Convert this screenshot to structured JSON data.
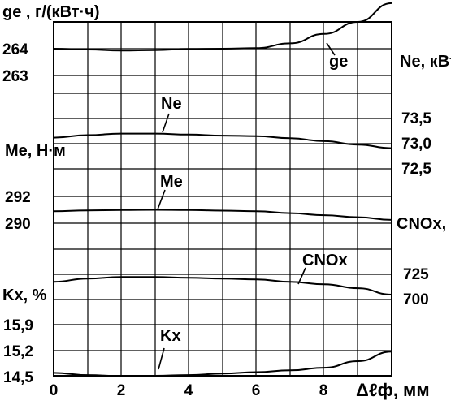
{
  "chart_data": {
    "type": "line",
    "x": [
      0,
      1,
      2,
      3,
      4,
      5,
      6,
      7,
      8,
      9,
      10
    ],
    "xlim": [
      0,
      10
    ],
    "x_ticks": [
      "0",
      "2",
      "4",
      "6",
      "8"
    ],
    "x_axis_label": "Δℓф, мм",
    "grid": true,
    "series": [
      {
        "name": "ge",
        "axis_label": "ge , г/(кВт·ч)",
        "axis_ticks": [
          "264",
          "263"
        ],
        "values": [
          264.0,
          263.97,
          263.93,
          263.95,
          263.99,
          264.0,
          264.02,
          264.2,
          264.55,
          265.0,
          265.7
        ]
      },
      {
        "name": "Ne",
        "axis_label": "Ne, кВт",
        "axis_ticks": [
          "73,5",
          "73,0",
          "72,5"
        ],
        "values": [
          73.12,
          73.17,
          73.2,
          73.2,
          73.18,
          73.16,
          73.15,
          73.11,
          73.05,
          72.98,
          72.91
        ]
      },
      {
        "name": "Me",
        "axis_label": "Me, Н·м",
        "axis_ticks": [
          "292",
          "290"
        ],
        "values": [
          290.9,
          290.95,
          290.98,
          291.0,
          290.98,
          290.94,
          290.9,
          290.75,
          290.6,
          290.45,
          290.25
        ]
      },
      {
        "name": "CNOx",
        "axis_label": "CNOx, ppm",
        "axis_ticks": [
          "725",
          "700"
        ],
        "values": [
          717.6,
          720.8,
          722.4,
          722.4,
          721.6,
          720.8,
          720.0,
          717.6,
          715.2,
          711.2,
          704.8
        ]
      },
      {
        "name": "Kx",
        "axis_label": "Kx, %",
        "axis_ticks": [
          "15,9",
          "15,2",
          "14,5"
        ],
        "values": [
          14.58,
          14.52,
          14.49,
          14.5,
          14.52,
          14.56,
          14.6,
          14.65,
          14.72,
          14.9,
          15.16
        ]
      }
    ]
  }
}
